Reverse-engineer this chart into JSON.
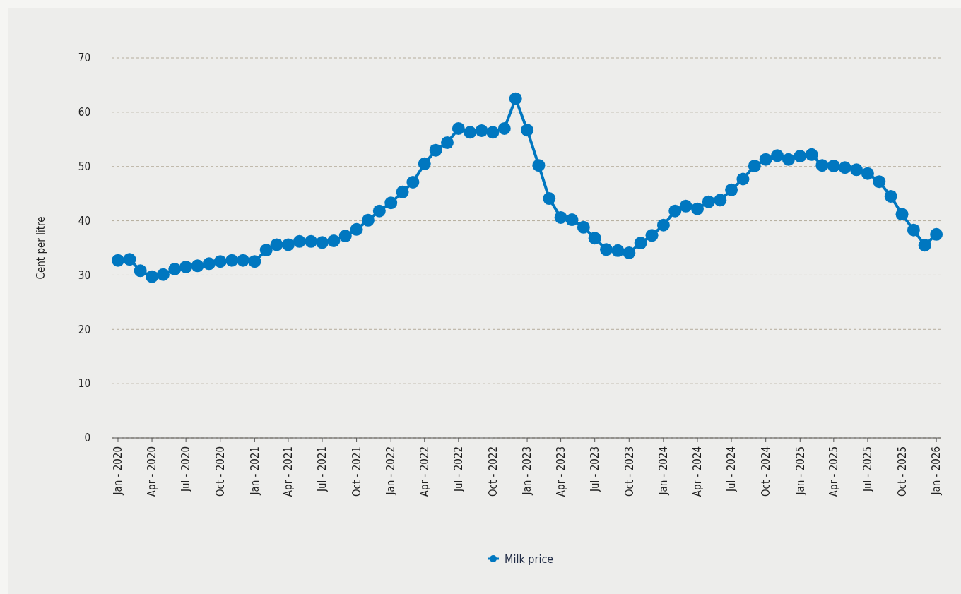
{
  "chart_data": {
    "type": "line",
    "ylabel": "Cent per litre",
    "x": [
      "2020-01",
      "2020-02",
      "2020-03",
      "2020-04",
      "2020-05",
      "2020-06",
      "2020-07",
      "2020-08",
      "2020-09",
      "2020-10",
      "2020-11",
      "2020-12",
      "2021-01",
      "2021-02",
      "2021-03",
      "2021-04",
      "2021-05",
      "2021-06",
      "2021-07",
      "2021-08",
      "2021-09",
      "2021-10",
      "2021-11",
      "2021-12",
      "2022-01",
      "2022-02",
      "2022-03",
      "2022-04",
      "2022-05",
      "2022-06",
      "2022-07",
      "2022-08",
      "2022-09",
      "2022-10",
      "2022-11",
      "2022-12",
      "2023-01",
      "2023-02",
      "2023-03",
      "2023-04",
      "2023-05",
      "2023-06",
      "2023-07",
      "2023-08",
      "2023-09",
      "2023-10",
      "2023-11",
      "2023-12",
      "2024-01",
      "2024-02",
      "2024-03",
      "2024-04",
      "2024-05",
      "2024-06",
      "2024-07",
      "2024-08",
      "2024-09",
      "2024-10",
      "2024-11",
      "2024-12",
      "2025-01",
      "2025-02",
      "2025-03",
      "2025-04",
      "2025-05",
      "2025-06",
      "2025-07",
      "2025-08",
      "2025-09",
      "2025-10",
      "2025-11",
      "2025-12",
      "2026-01"
    ],
    "series": [
      {
        "name": "Milk price",
        "color": "#0077c0",
        "values": [
          32.7,
          32.9,
          30.8,
          29.7,
          30.1,
          31.1,
          31.5,
          31.7,
          32.1,
          32.5,
          32.7,
          32.7,
          32.5,
          34.6,
          35.6,
          35.6,
          36.2,
          36.2,
          36.0,
          36.3,
          37.2,
          38.4,
          40.1,
          41.8,
          43.3,
          45.3,
          47.1,
          50.5,
          53.0,
          54.4,
          57.0,
          56.3,
          56.6,
          56.3,
          57.0,
          62.5,
          56.7,
          50.2,
          44.1,
          40.6,
          40.2,
          38.8,
          36.8,
          34.7,
          34.5,
          34.1,
          35.9,
          37.3,
          39.2,
          41.8,
          42.7,
          42.2,
          43.5,
          43.8,
          45.7,
          47.7,
          50.1,
          51.3,
          52.0,
          51.3,
          51.9,
          52.2,
          50.2,
          50.1,
          49.8,
          49.4,
          48.7,
          47.2,
          44.5,
          41.2,
          38.3,
          35.5,
          37.5
        ]
      }
    ],
    "xlim": [
      "2019-12-15",
      "2026-01-14"
    ],
    "xticks": [
      {
        "value": "2020-01",
        "label": "Jan - 2020"
      },
      {
        "value": "2020-04",
        "label": "Apr - 2020"
      },
      {
        "value": "2020-07",
        "label": "Jul - 2020"
      },
      {
        "value": "2020-10",
        "label": "Oct - 2020"
      },
      {
        "value": "2021-01",
        "label": "Jan - 2021"
      },
      {
        "value": "2021-04",
        "label": "Apr - 2021"
      },
      {
        "value": "2021-07",
        "label": "Jul - 2021"
      },
      {
        "value": "2021-10",
        "label": "Oct - 2021"
      },
      {
        "value": "2022-01",
        "label": "Jan - 2022"
      },
      {
        "value": "2022-04",
        "label": "Apr - 2022"
      },
      {
        "value": "2022-07",
        "label": "Jul - 2022"
      },
      {
        "value": "2022-10",
        "label": "Oct - 2022"
      },
      {
        "value": "2023-01",
        "label": "Jan - 2023"
      },
      {
        "value": "2023-04",
        "label": "Apr - 2023"
      },
      {
        "value": "2023-07",
        "label": "Jul - 2023"
      },
      {
        "value": "2023-10",
        "label": "Oct - 2023"
      },
      {
        "value": "2024-01",
        "label": "Jan - 2024"
      },
      {
        "value": "2024-04",
        "label": "Apr - 2024"
      },
      {
        "value": "2024-07",
        "label": "Jul - 2024"
      },
      {
        "value": "2024-10",
        "label": "Oct - 2024"
      },
      {
        "value": "2025-01",
        "label": "Jan - 2025"
      },
      {
        "value": "2025-04",
        "label": "Apr - 2025"
      },
      {
        "value": "2025-07",
        "label": "Jul - 2025"
      },
      {
        "value": "2025-10",
        "label": "Oct - 2025"
      },
      {
        "value": "2026-01",
        "label": "Jan - 2026"
      }
    ],
    "ylim": [
      0,
      70
    ],
    "yticks": [
      0,
      10,
      20,
      30,
      40,
      50,
      60,
      70
    ],
    "grid": "y",
    "legend": "bottom",
    "marker": "circle",
    "line_style": "solid"
  }
}
